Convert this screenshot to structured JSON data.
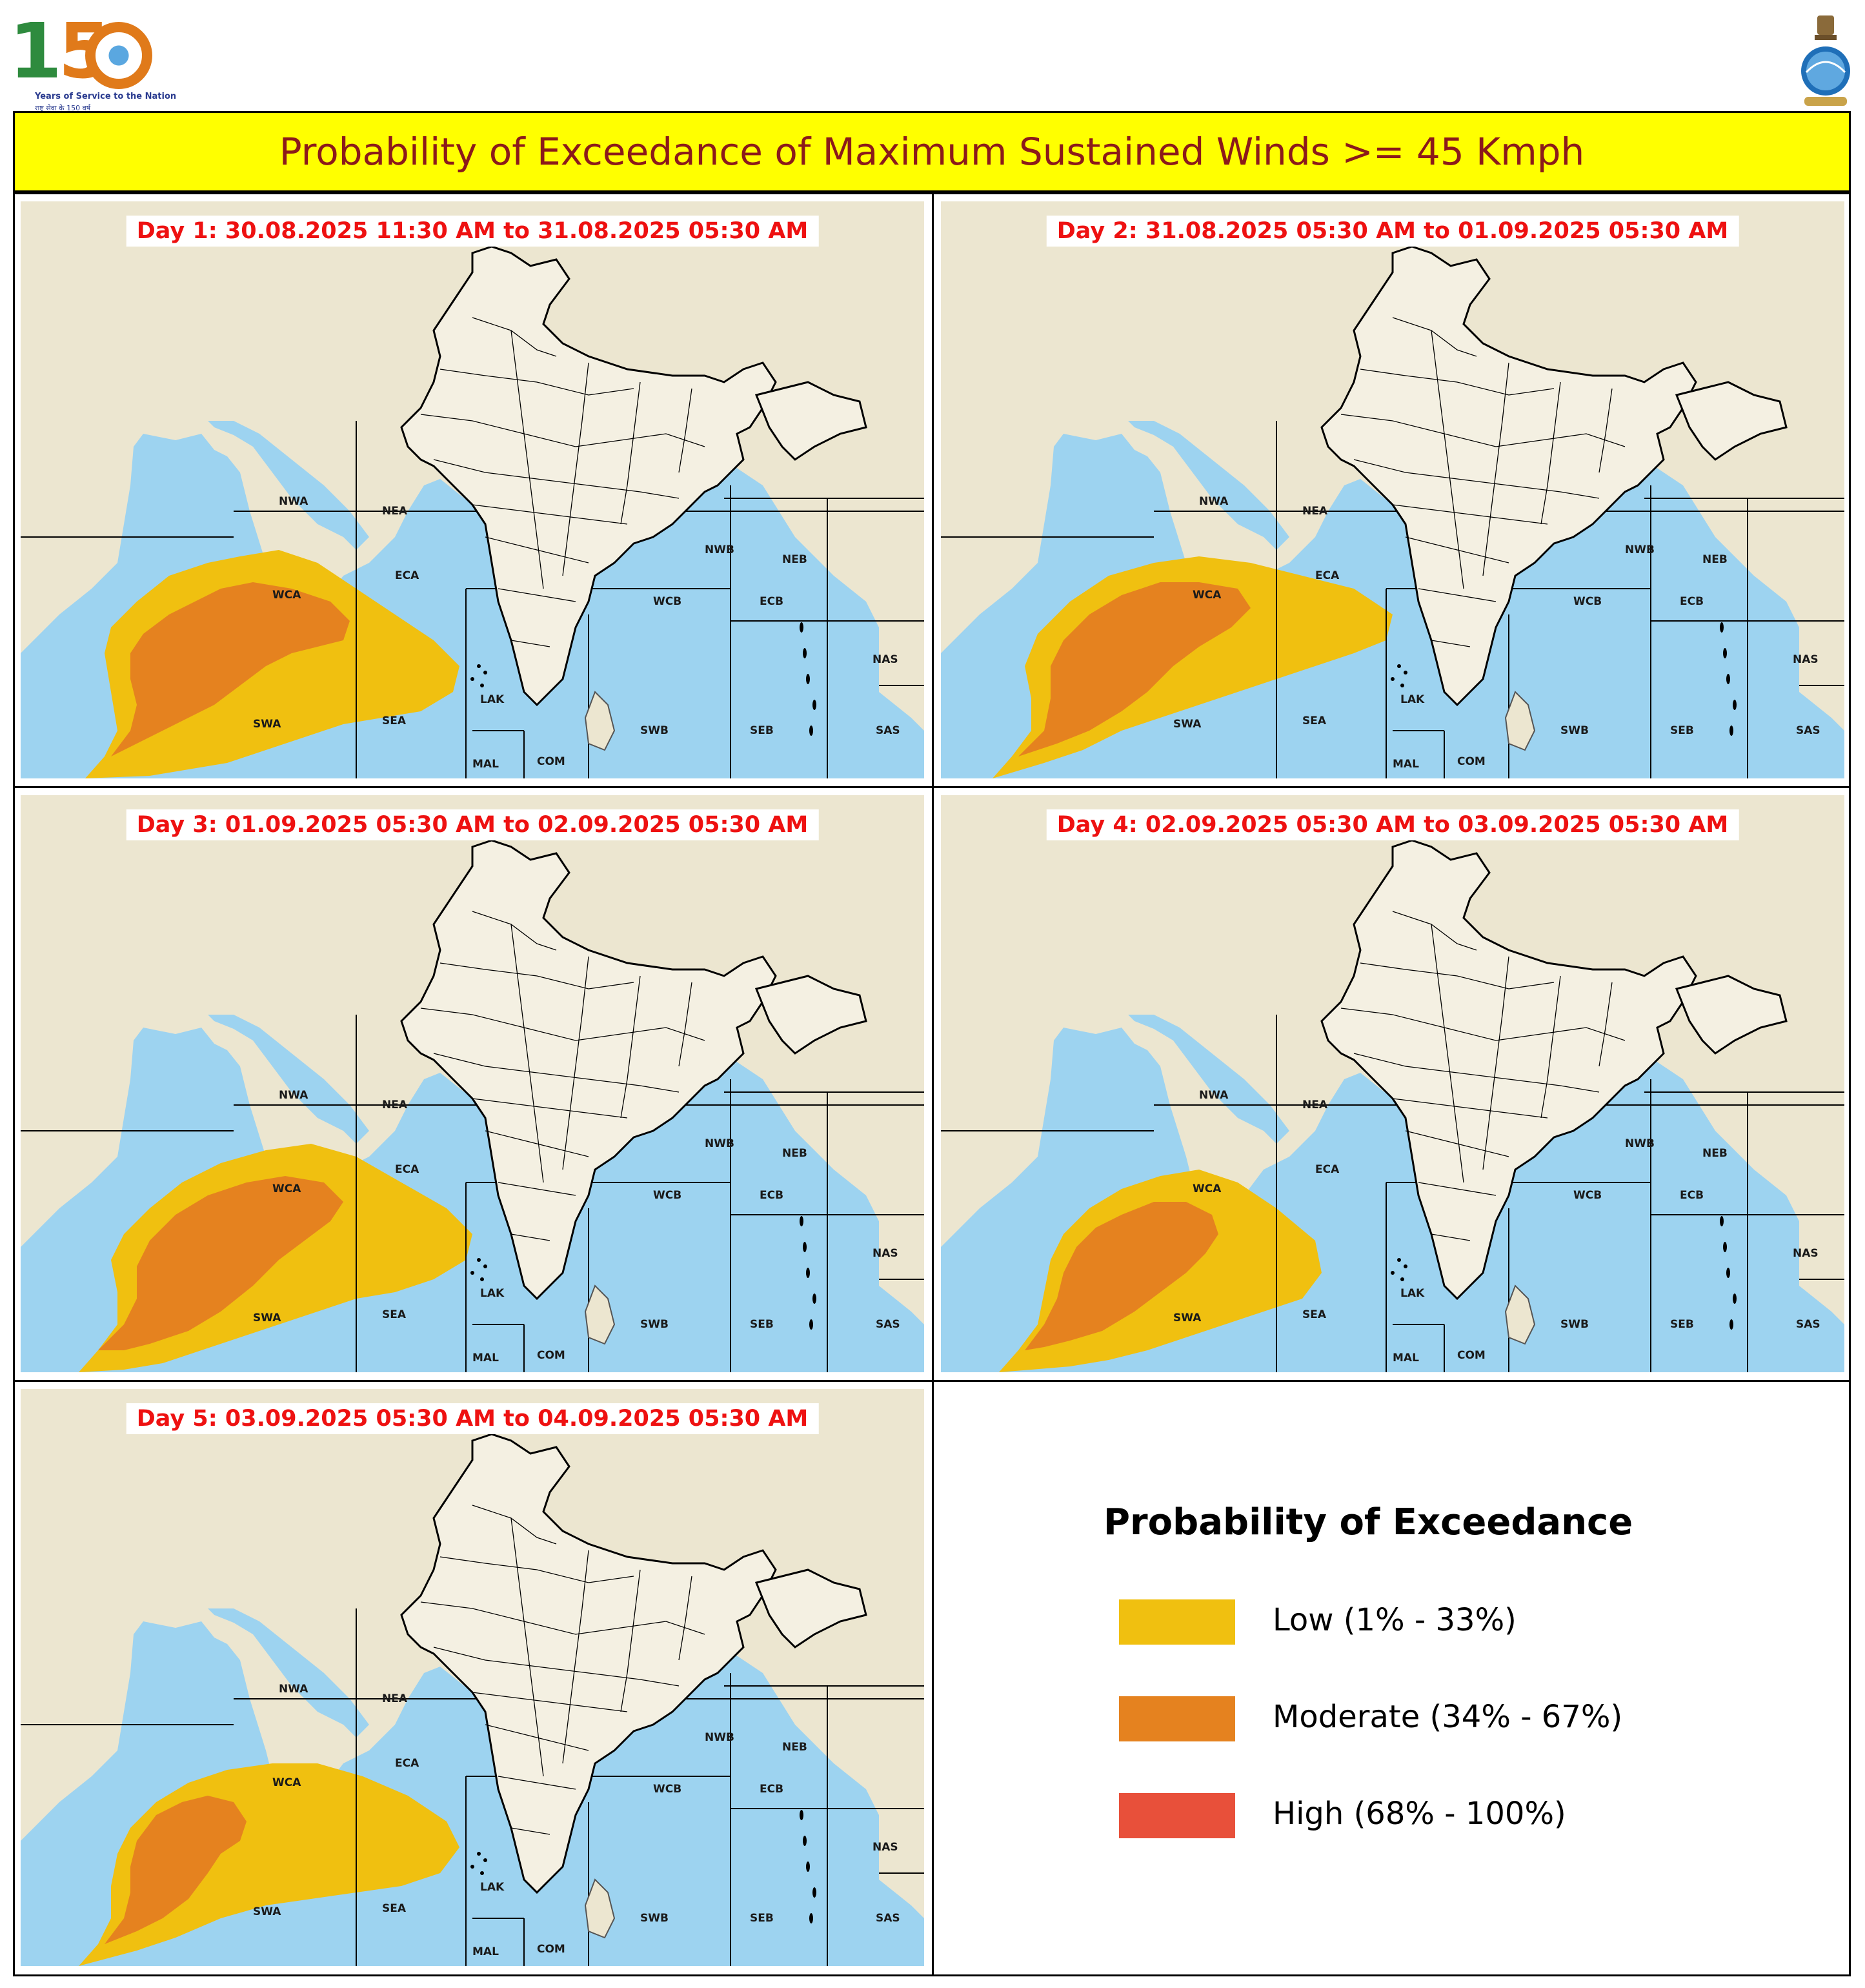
{
  "header": {
    "logo_digits": [
      "1",
      "5"
    ],
    "logo_tagline": "Years of Service to the Nation",
    "logo_tagline_hindi": "राष्ट्र सेवा के 150 वर्ष",
    "title": "Probability of Exceedance of Maximum Sustained Winds >= 45 Kmph"
  },
  "colors": {
    "low": "#f0c010",
    "moderate": "#e5821f",
    "high": "#e8503a",
    "sea": "#9dd3f0",
    "land": "#ece6d0",
    "title_bg": "#ffff00",
    "title_text": "#8b1a1a",
    "day_label": "#ee1111"
  },
  "regions": [
    "NWA",
    "NEA",
    "ECA",
    "WCA",
    "SWA",
    "SEA",
    "LAK",
    "MAL",
    "COM",
    "NWB",
    "NEB",
    "WCB",
    "ECB",
    "SWB",
    "SEB",
    "NAS",
    "SAS"
  ],
  "panels": [
    {
      "label": "Day 1: 30.08.2025 11:30 AM to 31.08.2025 05:30 AM"
    },
    {
      "label": "Day 2: 31.08.2025 05:30 AM to 01.09.2025 05:30 AM"
    },
    {
      "label": "Day 3: 01.09.2025 05:30 AM to 02.09.2025 05:30 AM"
    },
    {
      "label": "Day 4: 02.09.2025 05:30 AM to 03.09.2025 05:30 AM"
    },
    {
      "label": "Day 5: 03.09.2025 05:30 AM to 04.09.2025 05:30 AM"
    }
  ],
  "legend": {
    "title": "Probability of Exceedance",
    "items": [
      {
        "label": "Low (1% - 33%)",
        "level": "low"
      },
      {
        "label": "Moderate (34% - 67%)",
        "level": "moderate"
      },
      {
        "label": "High (68% - 100%)",
        "level": "high"
      }
    ]
  }
}
